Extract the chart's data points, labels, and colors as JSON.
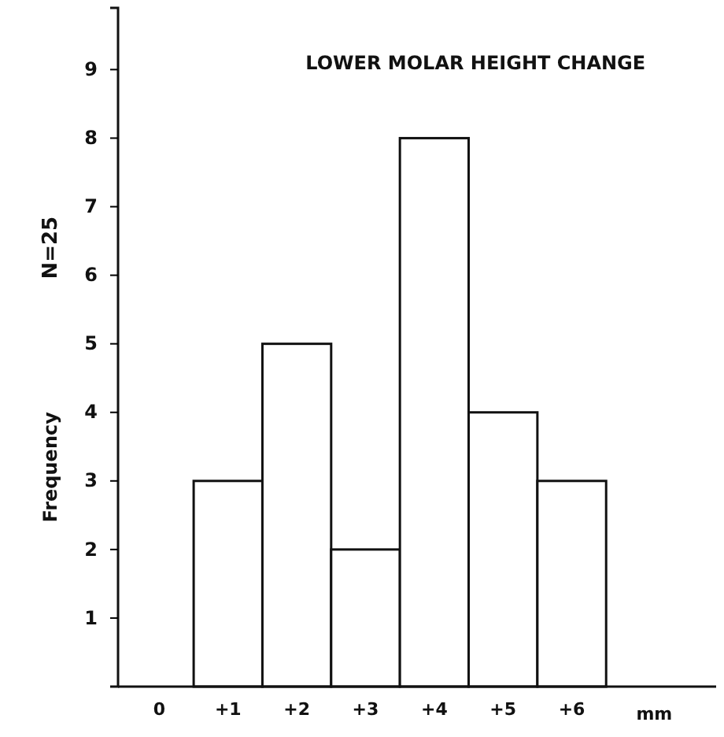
{
  "chart_data": {
    "type": "histogram",
    "title": "LOWER MOLAR HEIGHT CHANGE",
    "ylabel": "Frequency",
    "xlabel": "mm",
    "annotations": [
      "N=25"
    ],
    "bins": [
      0.5,
      1.5,
      2.5,
      3.5,
      4.5,
      5.5,
      6.5
    ],
    "values": [
      3,
      5,
      2,
      8,
      4,
      3
    ],
    "color": "#ffffff",
    "xlim": [
      -0.6,
      8.1
    ],
    "xticks": [
      0,
      {
        "value": 1,
        "label": "+1"
      },
      {
        "value": 2,
        "label": "+2"
      },
      {
        "value": 3,
        "label": "+3"
      },
      {
        "value": 4,
        "label": "+4"
      },
      {
        "value": 5,
        "label": "+5"
      },
      {
        "value": 6,
        "label": "+6"
      }
    ],
    "ylim": [
      0,
      9.9
    ],
    "yticks": [
      1,
      2,
      3,
      4,
      5,
      6,
      7,
      8,
      9
    ],
    "grid": false
  }
}
